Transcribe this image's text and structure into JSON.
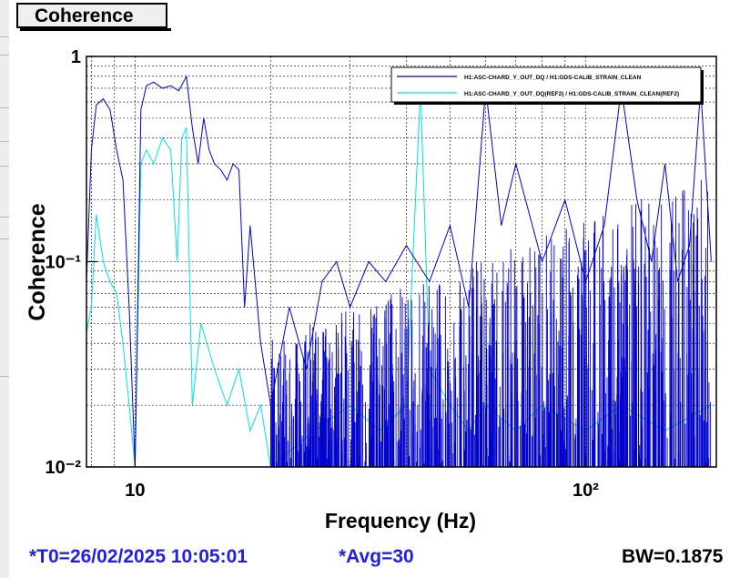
{
  "window": {
    "title": "Coherence"
  },
  "footer": {
    "t0": "*T0=26/02/2025 10:05:01",
    "avg": "*Avg=30",
    "bw": "BW=0.1875"
  },
  "colors": {
    "series_main": "#0000cc",
    "series_ref": "#00e0e0",
    "footer_text": "#1f1fe8"
  },
  "chart_data": {
    "type": "line",
    "title": "",
    "xlabel": "Frequency (Hz)",
    "ylabel": "Coherence",
    "x_scale": "log",
    "y_scale": "log",
    "xlim": [
      7.8,
      195
    ],
    "ylim": [
      0.01,
      1
    ],
    "grid": true,
    "legend_position": "top-right",
    "x_tick_labels": [
      "10",
      "10²"
    ],
    "y_tick_labels": [
      "10⁻²",
      "10⁻¹",
      "1"
    ],
    "series": [
      {
        "name": "H1:ASC-CHARD_Y_OUT_DQ / H1:GDS-CALIB_STRAIN_CLEAN",
        "color": "#0000cc",
        "points": [
          [
            7.8,
            0.08
          ],
          [
            8.0,
            0.35
          ],
          [
            8.2,
            0.58
          ],
          [
            8.5,
            0.62
          ],
          [
            8.8,
            0.55
          ],
          [
            9.1,
            0.35
          ],
          [
            9.4,
            0.25
          ],
          [
            9.7,
            0.06
          ],
          [
            10.0,
            0.01
          ],
          [
            10.3,
            0.55
          ],
          [
            10.6,
            0.72
          ],
          [
            11.0,
            0.75
          ],
          [
            11.5,
            0.7
          ],
          [
            12.0,
            0.72
          ],
          [
            12.5,
            0.68
          ],
          [
            13.0,
            0.8
          ],
          [
            13.4,
            0.45
          ],
          [
            13.8,
            0.3
          ],
          [
            14.2,
            0.5
          ],
          [
            14.6,
            0.35
          ],
          [
            15.0,
            0.3
          ],
          [
            15.5,
            0.28
          ],
          [
            16.0,
            0.25
          ],
          [
            16.5,
            0.3
          ],
          [
            17.0,
            0.28
          ],
          [
            17.5,
            0.06
          ],
          [
            18.0,
            0.15
          ],
          [
            19.0,
            0.04
          ],
          [
            20.0,
            0.02
          ],
          [
            22.0,
            0.06
          ],
          [
            24.0,
            0.03
          ],
          [
            26.0,
            0.08
          ],
          [
            28.0,
            0.1
          ],
          [
            30.0,
            0.06
          ],
          [
            33.0,
            0.1
          ],
          [
            36.0,
            0.08
          ],
          [
            40.0,
            0.12
          ],
          [
            45.0,
            0.08
          ],
          [
            50.0,
            0.15
          ],
          [
            55.0,
            0.06
          ],
          [
            60.0,
            0.7
          ],
          [
            65.0,
            0.15
          ],
          [
            70.0,
            0.3
          ],
          [
            80.0,
            0.1
          ],
          [
            90.0,
            0.2
          ],
          [
            100.0,
            0.08
          ],
          [
            110.0,
            0.15
          ],
          [
            120.0,
            0.7
          ],
          [
            130.0,
            0.2
          ],
          [
            140.0,
            0.1
          ],
          [
            150.0,
            0.3
          ],
          [
            160.0,
            0.08
          ],
          [
            170.0,
            0.12
          ],
          [
            180.0,
            0.7
          ],
          [
            190.0,
            0.1
          ]
        ]
      },
      {
        "name": "H1:ASC-CHARD_Y_OUT_DQ(REF2) / H1:GDS-CALIB_STRAIN_CLEAN(REF2)",
        "color": "#00e0e0",
        "points": [
          [
            7.8,
            0.045
          ],
          [
            8.0,
            0.06
          ],
          [
            8.2,
            0.17
          ],
          [
            8.5,
            0.1
          ],
          [
            8.8,
            0.08
          ],
          [
            9.1,
            0.07
          ],
          [
            9.4,
            0.04
          ],
          [
            9.7,
            0.02
          ],
          [
            10.0,
            0.01
          ],
          [
            10.3,
            0.3
          ],
          [
            10.6,
            0.35
          ],
          [
            11.0,
            0.3
          ],
          [
            11.5,
            0.4
          ],
          [
            12.0,
            0.35
          ],
          [
            12.4,
            0.1
          ],
          [
            12.7,
            0.4
          ],
          [
            13.0,
            0.45
          ],
          [
            13.4,
            0.02
          ],
          [
            14.0,
            0.05
          ],
          [
            15.0,
            0.03
          ],
          [
            16.0,
            0.02
          ],
          [
            17.0,
            0.03
          ],
          [
            18.0,
            0.015
          ],
          [
            19.0,
            0.02
          ],
          [
            20.0,
            0.01
          ],
          [
            25.0,
            0.015
          ],
          [
            30.0,
            0.02
          ],
          [
            35.0,
            0.015
          ],
          [
            40.0,
            0.02
          ],
          [
            43.0,
            0.7
          ],
          [
            45.0,
            0.03
          ],
          [
            50.0,
            0.02
          ],
          [
            55.0,
            0.015
          ],
          [
            60.0,
            0.02
          ],
          [
            70.0,
            0.015
          ],
          [
            80.0,
            0.02
          ],
          [
            100.0,
            0.015
          ],
          [
            120.0,
            0.02
          ],
          [
            150.0,
            0.015
          ],
          [
            190.0,
            0.02
          ]
        ]
      }
    ]
  }
}
